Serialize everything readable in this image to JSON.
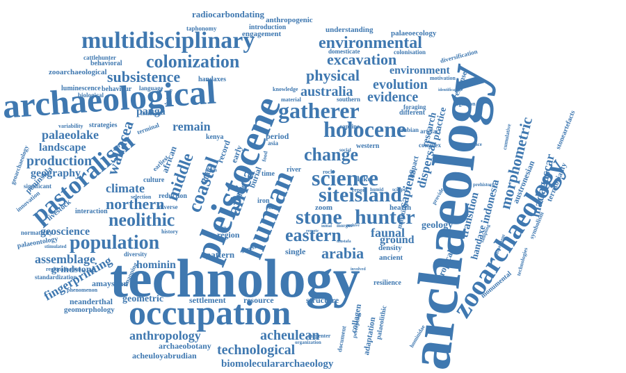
{
  "word_cloud": {
    "color": "#3f78b0",
    "words": [
      {
        "id": "technology",
        "text": "technology"
      },
      {
        "id": "archaeology",
        "text": "archaeology"
      },
      {
        "id": "pleistocene",
        "text": "pleistocene"
      },
      {
        "id": "archaeological",
        "text": "archaeological"
      },
      {
        "id": "occupation",
        "text": "occupation"
      },
      {
        "id": "zooarchaeology",
        "text": "zooarchaeology"
      },
      {
        "id": "multidisciplinary",
        "text": "multidisciplinary"
      },
      {
        "id": "human",
        "text": "human"
      },
      {
        "id": "holocene",
        "text": "holocene"
      },
      {
        "id": "pastoralism",
        "text": "pastoralism"
      },
      {
        "id": "gatherer",
        "text": "gatherer"
      },
      {
        "id": "colonization",
        "text": "colonization"
      },
      {
        "id": "science",
        "text": "science"
      },
      {
        "id": "stone",
        "text": "stone"
      },
      {
        "id": "hunter",
        "text": "hunter"
      },
      {
        "id": "siteisland",
        "text": "siteisland"
      },
      {
        "id": "eastern",
        "text": "eastern"
      },
      {
        "id": "population",
        "text": "population"
      },
      {
        "id": "neolithic",
        "text": "neolithic"
      },
      {
        "id": "environmental",
        "text": "environmental"
      },
      {
        "id": "excavation",
        "text": "excavation"
      },
      {
        "id": "subsistence",
        "text": "subsistence"
      },
      {
        "id": "physical",
        "text": "physical"
      },
      {
        "id": "australia",
        "text": "australia"
      },
      {
        "id": "evolution",
        "text": "evolution"
      },
      {
        "id": "evidence",
        "text": "evidence"
      },
      {
        "id": "environment",
        "text": "environment"
      },
      {
        "id": "change",
        "text": "change"
      },
      {
        "id": "africa",
        "text": "africa"
      },
      {
        "id": "coastal",
        "text": "coastal"
      },
      {
        "id": "middle",
        "text": "middle"
      },
      {
        "id": "northern",
        "text": "northern"
      },
      {
        "id": "production",
        "text": "production"
      },
      {
        "id": "palaeolake",
        "text": "palaeolake"
      },
      {
        "id": "landscape",
        "text": "landscape"
      },
      {
        "id": "geography",
        "text": "geography"
      },
      {
        "id": "climate",
        "text": "climate"
      },
      {
        "id": "wallacea",
        "text": "wallacea"
      },
      {
        "id": "panga",
        "text": "panga"
      },
      {
        "id": "remain",
        "text": "remain"
      },
      {
        "id": "morphometric",
        "text": "morphometric"
      },
      {
        "id": "madagascar",
        "text": "madagascar"
      },
      {
        "id": "indonesia",
        "text": "indonesia"
      },
      {
        "id": "transition",
        "text": "transition"
      },
      {
        "id": "handaxe",
        "text": "handaxe"
      },
      {
        "id": "sapiens",
        "text": "sapiens"
      },
      {
        "id": "dispersal",
        "text": "dispersal"
      },
      {
        "id": "research",
        "text": "research"
      },
      {
        "id": "practice",
        "text": "practice"
      },
      {
        "id": "arabia",
        "text": "arabia"
      },
      {
        "id": "faunal",
        "text": "faunal"
      },
      {
        "id": "ground",
        "text": "ground"
      },
      {
        "id": "geology",
        "text": "geology"
      },
      {
        "id": "hominin",
        "text": "hominin"
      },
      {
        "id": "assemblage",
        "text": "assemblage"
      },
      {
        "id": "geoscience",
        "text": "geoscience"
      },
      {
        "id": "grindstone",
        "text": "grindstone"
      },
      {
        "id": "fingerprinting",
        "text": "fingerprinting"
      },
      {
        "id": "amayshan",
        "text": "amayshan"
      },
      {
        "id": "neanderthal",
        "text": "neanderthal"
      },
      {
        "id": "geomorphology",
        "text": "geomorphology"
      },
      {
        "id": "geometric",
        "text": "geometric"
      },
      {
        "id": "settlement",
        "text": "settlement"
      },
      {
        "id": "resource",
        "text": "resource"
      },
      {
        "id": "structure",
        "text": "structure"
      },
      {
        "id": "anthropology",
        "text": "anthropology"
      },
      {
        "id": "acheulean",
        "text": "acheulean"
      },
      {
        "id": "technological",
        "text": "technological"
      },
      {
        "id": "archaeobotany",
        "text": "archaeobotany"
      },
      {
        "id": "acheuloyabrudian",
        "text": "acheuloyabrudian"
      },
      {
        "id": "biomolecular",
        "text": "biomoleculararchaeology"
      },
      {
        "id": "radiocarbon",
        "text": "radiocarbondating"
      },
      {
        "id": "anthropogenic",
        "text": "anthropogenic"
      },
      {
        "id": "taphonomy",
        "text": "taphonomy"
      },
      {
        "id": "introduction",
        "text": "introduction"
      },
      {
        "id": "engagement",
        "text": "engagement"
      },
      {
        "id": "understanding",
        "text": "understanding"
      },
      {
        "id": "palaeoecology",
        "text": "palaeoecology"
      },
      {
        "id": "domesticate",
        "text": "domesticate"
      },
      {
        "id": "colonisation",
        "text": "colonisation"
      },
      {
        "id": "diversification",
        "text": "diversification"
      },
      {
        "id": "cattlehunter",
        "text": "cattlehunter"
      },
      {
        "id": "behavioral",
        "text": "behavioral"
      },
      {
        "id": "zooarchaeological",
        "text": "zooarchaeological"
      },
      {
        "id": "luminescence",
        "text": "luminescence"
      },
      {
        "id": "behaviour",
        "text": "behaviour"
      },
      {
        "id": "biological",
        "text": "biological"
      },
      {
        "id": "language",
        "text": "language"
      },
      {
        "id": "handaxes",
        "text": "handaxes"
      },
      {
        "id": "knowledge",
        "text": "knowledge"
      },
      {
        "id": "southern",
        "text": "southern"
      },
      {
        "id": "material",
        "text": "material"
      },
      {
        "id": "motivation",
        "text": "motivation"
      },
      {
        "id": "response",
        "text": "response"
      },
      {
        "id": "cognition",
        "text": "cognition"
      },
      {
        "id": "foraging",
        "text": "foraging"
      },
      {
        "id": "different",
        "text": "different"
      },
      {
        "id": "caprine",
        "text": "caprine"
      },
      {
        "id": "arabian",
        "text": "arabian"
      },
      {
        "id": "western",
        "text": "western"
      },
      {
        "id": "artefact",
        "text": "artefact"
      },
      {
        "id": "complex",
        "text": "complex"
      },
      {
        "id": "sequence",
        "text": "sequence"
      },
      {
        "id": "stoneartefacts",
        "text": "stoneartefacts"
      },
      {
        "id": "austronesian",
        "text": "austronesian"
      },
      {
        "id": "territoriality",
        "text": "territoriality"
      },
      {
        "id": "cumulative",
        "text": "cumulative"
      },
      {
        "id": "prehistoric",
        "text": "prehistoric"
      },
      {
        "id": "symbolism",
        "text": "symbolism"
      },
      {
        "id": "tropical",
        "text": "tropical"
      },
      {
        "id": "monumental",
        "text": "monumental"
      },
      {
        "id": "technologies",
        "text": "technologies"
      },
      {
        "id": "subsequent",
        "text": "subsequent"
      },
      {
        "id": "sampling",
        "text": "sampling"
      },
      {
        "id": "hominidae",
        "text": "hominidae"
      },
      {
        "id": "resilience",
        "text": "resilience"
      },
      {
        "id": "perception",
        "text": "perception"
      },
      {
        "id": "palaeolithic",
        "text": "palaeolithic"
      },
      {
        "id": "adaptation",
        "text": "adaptation"
      },
      {
        "id": "collagen",
        "text": "collagen"
      },
      {
        "id": "document",
        "text": "document"
      },
      {
        "id": "maritime",
        "text": "maritime"
      },
      {
        "id": "impact",
        "text": "impact"
      },
      {
        "id": "density",
        "text": "density"
      },
      {
        "id": "ancient",
        "text": "ancient"
      },
      {
        "id": "hearth",
        "text": "hearth"
      },
      {
        "id": "fishbook",
        "text": "fishbook"
      },
      {
        "id": "variability",
        "text": "variability"
      },
      {
        "id": "strategies",
        "text": "strategies"
      },
      {
        "id": "african",
        "text": "african"
      },
      {
        "id": "earliest",
        "text": "earliest"
      },
      {
        "id": "culture",
        "text": "culture"
      },
      {
        "id": "kenya",
        "text": "kenya"
      },
      {
        "id": "period",
        "text": "period"
      },
      {
        "id": "asia",
        "text": "asia"
      },
      {
        "id": "record",
        "text": "record"
      },
      {
        "id": "burial",
        "text": "burial"
      },
      {
        "id": "lithic",
        "text": "lithic"
      },
      {
        "id": "early",
        "text": "early"
      },
      {
        "id": "reduction",
        "text": "reduction"
      },
      {
        "id": "selection",
        "text": "selection"
      },
      {
        "id": "diverse",
        "text": "diverse"
      },
      {
        "id": "interaction",
        "text": "interaction"
      },
      {
        "id": "livestock",
        "text": "livestock"
      },
      {
        "id": "peninsula",
        "text": "peninsula"
      },
      {
        "id": "significant",
        "text": "significant"
      },
      {
        "id": "innovation",
        "text": "innovation"
      },
      {
        "id": "geoarchaeology",
        "text": "geoarchaeology"
      },
      {
        "id": "normativity",
        "text": "normativity"
      },
      {
        "id": "palaeontology",
        "text": "palaeontology"
      },
      {
        "id": "regionalisation",
        "text": "regionalisation"
      },
      {
        "id": "standardization",
        "text": "standardization"
      },
      {
        "id": "phenomenon",
        "text": "phenomenon"
      },
      {
        "id": "knapping",
        "text": "knapping"
      },
      {
        "id": "diversity",
        "text": "diversity"
      },
      {
        "id": "history",
        "text": "history"
      },
      {
        "id": "region",
        "text": "region"
      },
      {
        "id": "pattern",
        "text": "pattern"
      },
      {
        "id": "single",
        "text": "single"
      },
      {
        "id": "zoom",
        "text": "zoom"
      },
      {
        "id": "flake",
        "text": "flake"
      },
      {
        "id": "river",
        "text": "river"
      },
      {
        "id": "late",
        "text": "late"
      },
      {
        "id": "time",
        "text": "time"
      },
      {
        "id": "more",
        "text": "more"
      },
      {
        "id": "iron",
        "text": "iron"
      },
      {
        "id": "carpenter",
        "text": "carpenter"
      },
      {
        "id": "organization",
        "text": "organization"
      },
      {
        "id": "terminal",
        "text": "terminal"
      },
      {
        "id": "britain",
        "text": "britain"
      },
      {
        "id": "report",
        "text": "report"
      },
      {
        "id": "humid",
        "text": "humid"
      },
      {
        "id": "scraper",
        "text": "scraper"
      },
      {
        "id": "provide",
        "text": "provide"
      },
      {
        "id": "identification",
        "text": "identification"
      },
      {
        "id": "stimulated",
        "text": "stimulated"
      },
      {
        "id": "forest",
        "text": "forest"
      },
      {
        "id": "tabun",
        "text": "tabun"
      },
      {
        "id": "morgue",
        "text": "morgue"
      },
      {
        "id": "mustafa",
        "text": "mustafa"
      },
      {
        "id": "social",
        "text": "social"
      },
      {
        "id": "basin",
        "text": "basin"
      },
      {
        "id": "food",
        "text": "food"
      },
      {
        "id": "rock",
        "text": "rock"
      },
      {
        "id": "initial",
        "text": "initial"
      },
      {
        "id": "archive",
        "text": "archive"
      },
      {
        "id": "remote",
        "text": "remote"
      },
      {
        "id": "involved",
        "text": "involved"
      },
      {
        "id": "imitation",
        "text": "imitation"
      }
    ]
  }
}
